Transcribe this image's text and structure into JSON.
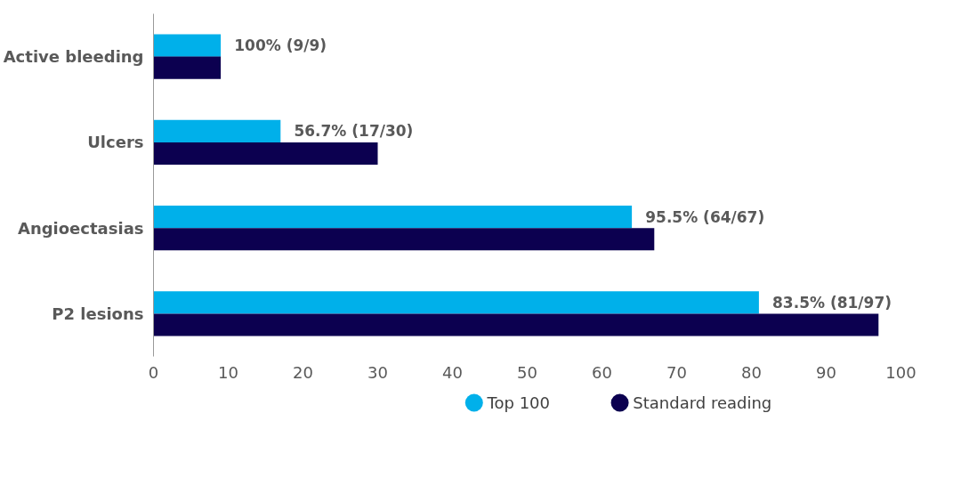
{
  "chart_data": {
    "type": "bar",
    "orientation": "horizontal",
    "categories": [
      "Active bleeding",
      "Ulcers",
      "Angioectasias",
      "P2 lesions"
    ],
    "series": [
      {
        "name": "Top 100",
        "color": "#00b0ea",
        "values": [
          9,
          17,
          64,
          81
        ],
        "value_labels": [
          "100% (9/9)",
          "56.7% (17/30)",
          "95.5% (64/67)",
          "83.5% (81/97)"
        ]
      },
      {
        "name": "Standard reading",
        "color": "#0c0050",
        "values": [
          9,
          30,
          67,
          97
        ]
      }
    ],
    "xlim": [
      0,
      100
    ],
    "xticks": [
      0,
      10,
      20,
      30,
      40,
      50,
      60,
      70,
      80,
      90,
      100
    ],
    "legend": "bottom"
  }
}
